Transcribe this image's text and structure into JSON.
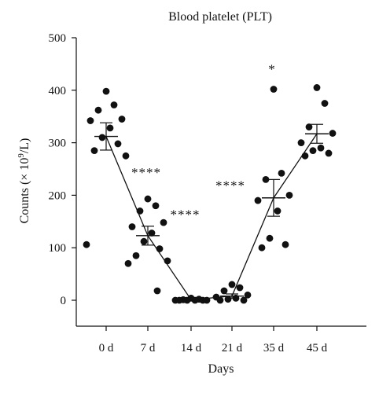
{
  "chart_data": {
    "type": "scatter",
    "title": "Blood platelet (PLT)",
    "xlabel": "Days",
    "ylabel_main": "Counts (× 10",
    "ylabel_sup": "9",
    "ylabel_tail": "/L)",
    "categories": [
      "0 d",
      "7 d",
      "14 d",
      "21 d",
      "35 d",
      "45 d"
    ],
    "ylim": [
      0,
      500
    ],
    "yticks": [
      "0",
      "100",
      "200",
      "300",
      "400",
      "500"
    ],
    "grid": false,
    "means": [
      312,
      123,
      1,
      8,
      195,
      317
    ],
    "sem": [
      26,
      18,
      1,
      4,
      35,
      18
    ],
    "points": [
      [
        398,
        372,
        362,
        345,
        342,
        328,
        310,
        298,
        285,
        275,
        106
      ],
      [
        193,
        180,
        170,
        148,
        140,
        128,
        112,
        98,
        85,
        75,
        70,
        18
      ],
      [
        4,
        2,
        1,
        0,
        0,
        0,
        0,
        0,
        0
      ],
      [
        30,
        24,
        18,
        10,
        6,
        4,
        2,
        0,
        0
      ],
      [
        402,
        242,
        230,
        200,
        190,
        170,
        118,
        106,
        100
      ],
      [
        405,
        375,
        330,
        318,
        300,
        290,
        285,
        280,
        275
      ]
    ],
    "annotations": [
      {
        "text": "****",
        "x": 1,
        "y": 235
      },
      {
        "text": "****",
        "x": 2,
        "y": 155
      },
      {
        "text": "****",
        "x": 3,
        "y": 210
      },
      {
        "text": "*",
        "x": 4,
        "y": 432
      }
    ]
  }
}
